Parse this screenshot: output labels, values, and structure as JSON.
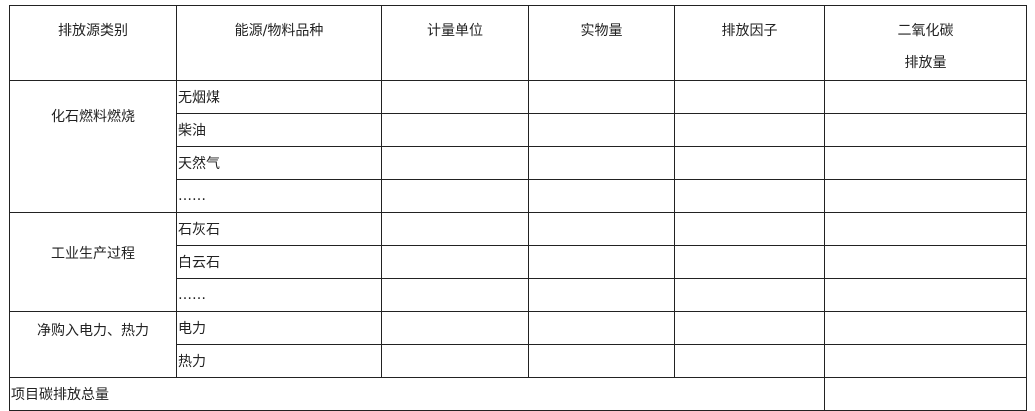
{
  "headers": [
    "排放源类别",
    "能源/物料品种",
    "计量单位",
    "实物量",
    "排放因子",
    "二氧化碳",
    "排放量"
  ],
  "groups": [
    {
      "label": "化石燃料燃烧",
      "items": [
        "无烟煤",
        "柴油",
        "天然气",
        "……"
      ]
    },
    {
      "label": "工业生产过程",
      "items": [
        "石灰石",
        "白云石",
        "……"
      ]
    },
    {
      "label": "净购入电力、热力",
      "items": [
        "电力",
        "热力"
      ]
    }
  ],
  "total_label": "项目碳排放总量"
}
